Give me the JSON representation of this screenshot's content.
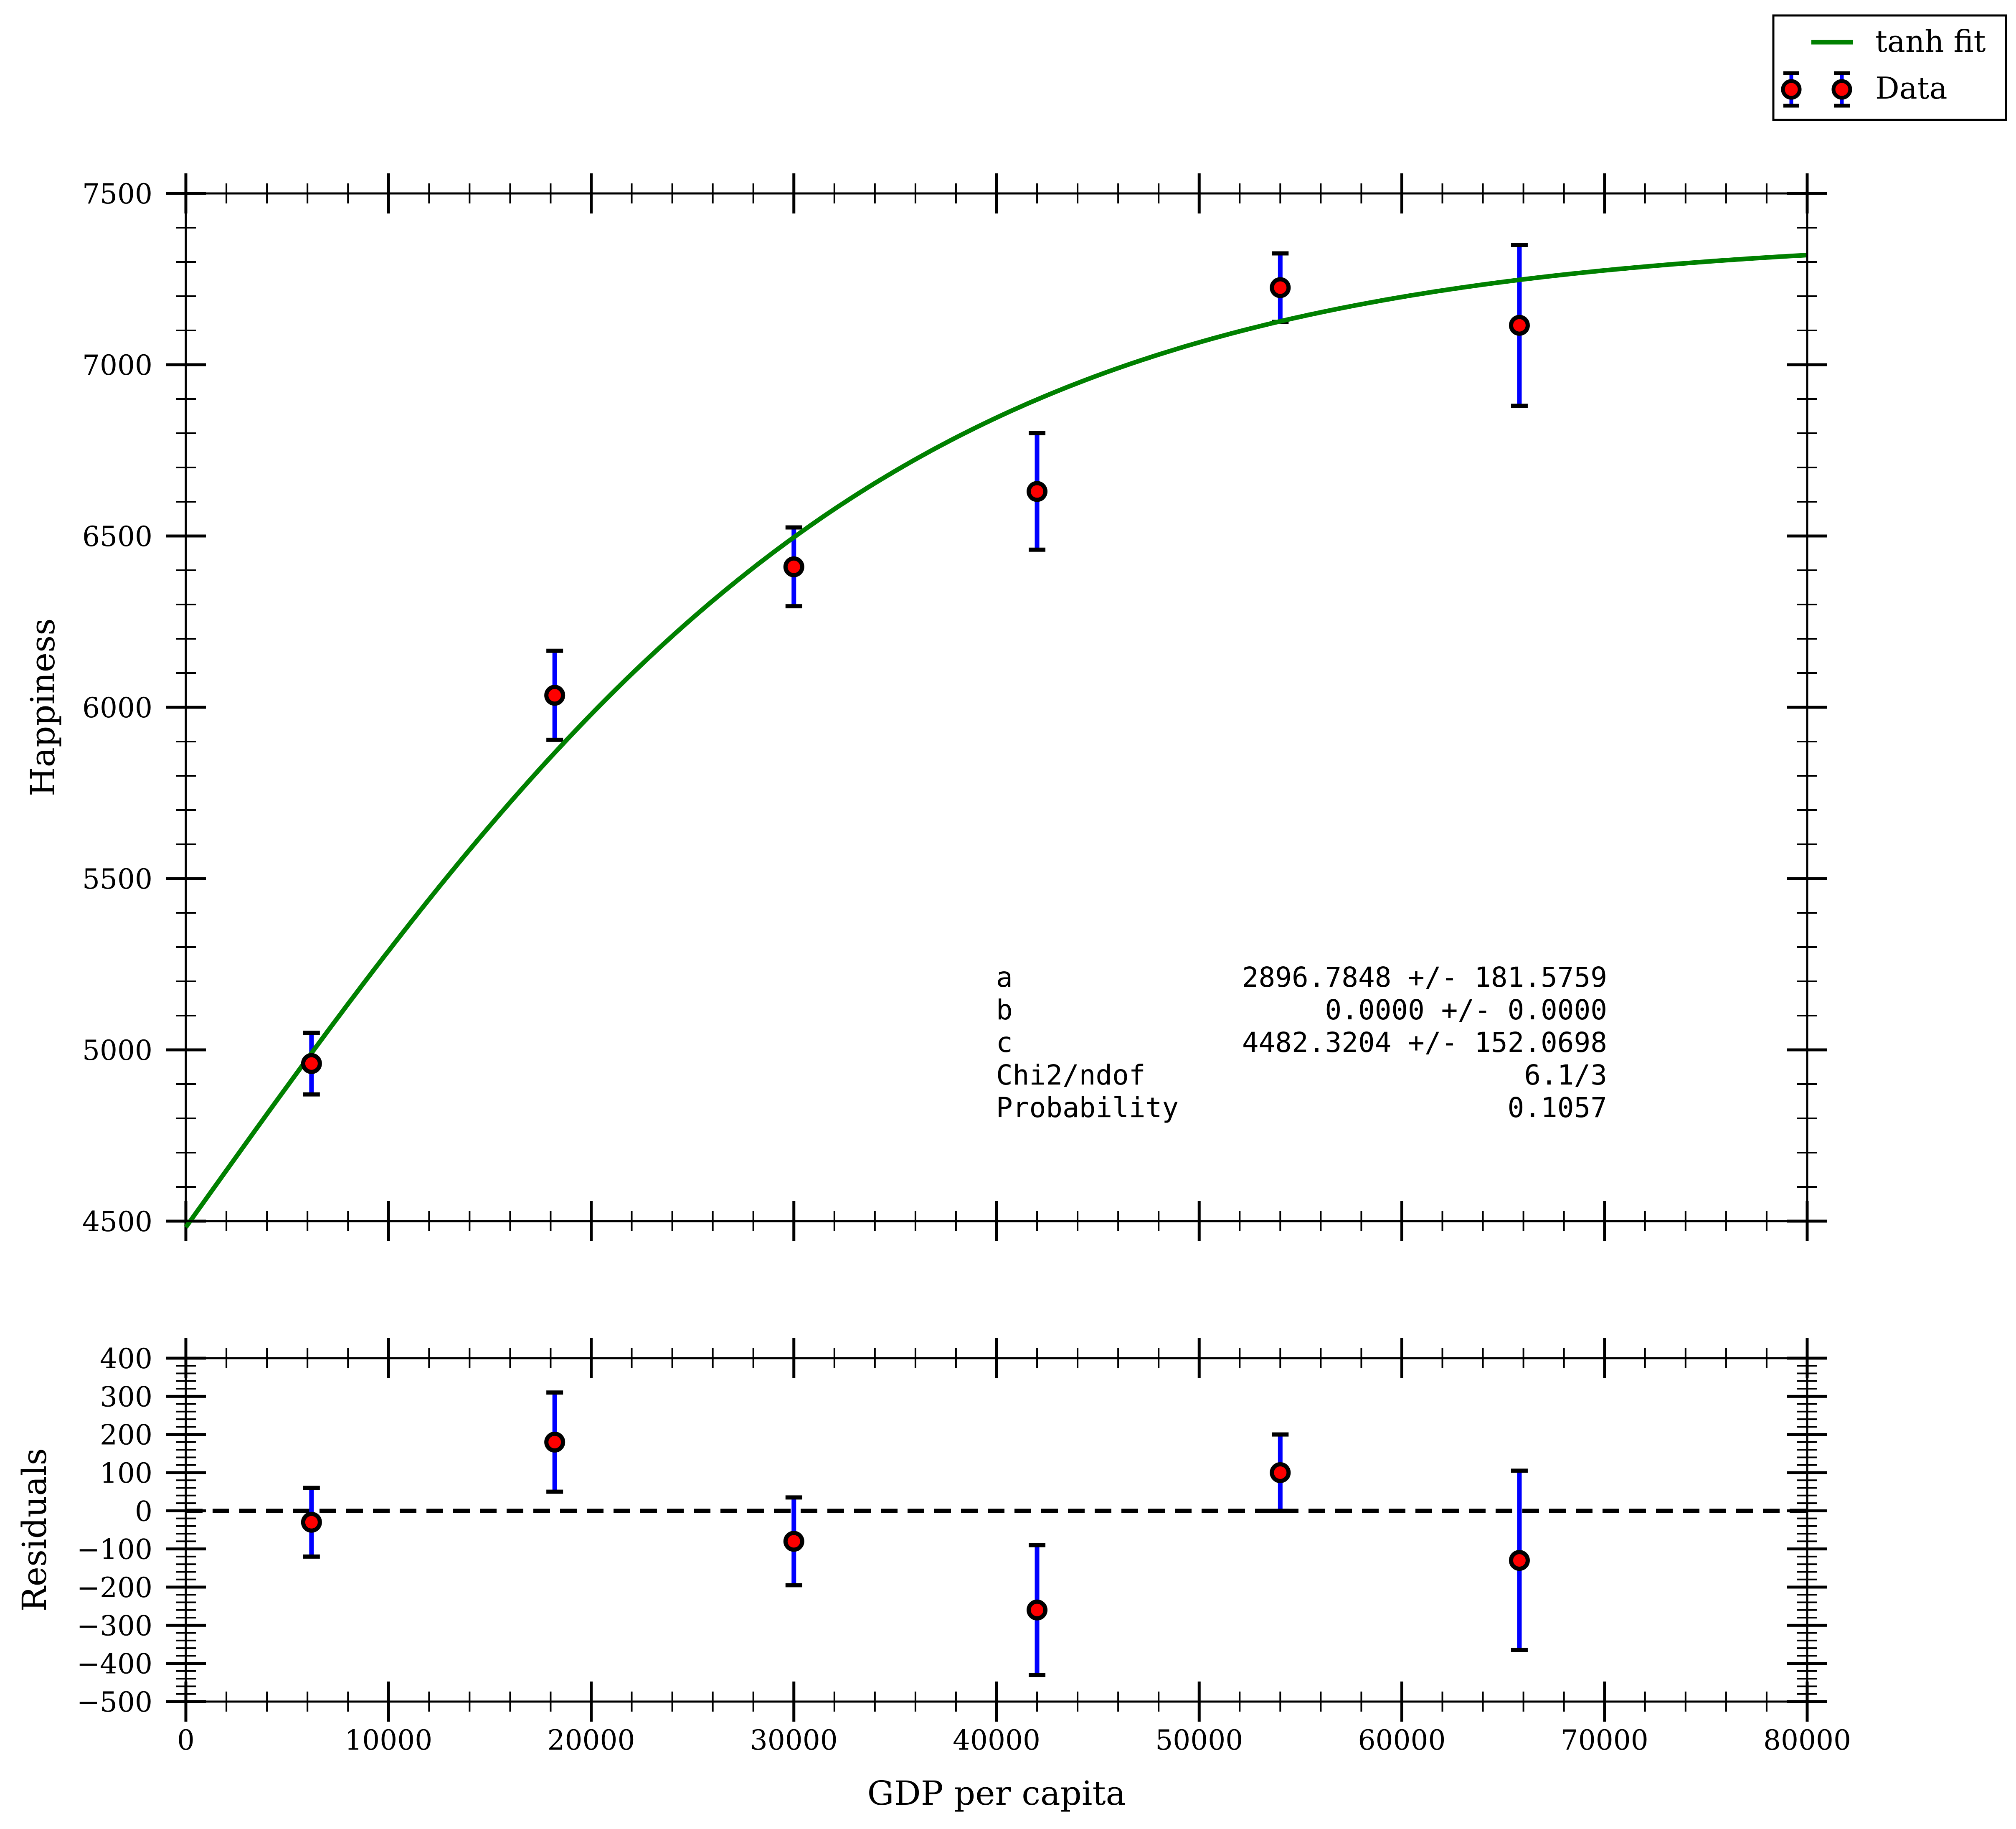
{
  "chart_data": [
    {
      "type": "scatter",
      "title": "",
      "xlabel": "",
      "ylabel": "Happiness",
      "xlim": [
        0,
        80000
      ],
      "ylim": [
        4500,
        7500
      ],
      "x_ticks": [
        "0",
        "10000",
        "20000",
        "30000",
        "40000",
        "50000",
        "60000",
        "70000",
        "80000"
      ],
      "y_ticks": [
        "4500",
        "5000",
        "5500",
        "6000",
        "6500",
        "7000",
        "7500"
      ],
      "grid": false,
      "legend": {
        "position": "top-right, outside plot",
        "entries": [
          {
            "label": "tanh fit",
            "color": "#008000",
            "marker": "line"
          },
          {
            "label": "Data",
            "color": "#ff0000",
            "marker": "errorbar"
          }
        ]
      },
      "series": [
        {
          "name": "tanh fit",
          "kind": "line",
          "color": "#008000",
          "model": "a*tanh(b*x)+c",
          "params": {
            "a": 2896.7848,
            "b": 2.86e-05,
            "c": 4482.3204
          }
        },
        {
          "name": "Data",
          "kind": "errorbar",
          "color": "#ff0000",
          "errorbar_color": "#0000ff",
          "x": [
            6200,
            18200,
            30000,
            42000,
            54000,
            65800
          ],
          "y": [
            4960,
            6035,
            6410,
            6630,
            7225,
            7115
          ],
          "yerr": [
            90,
            130,
            115,
            170,
            100,
            235
          ]
        }
      ],
      "annotations": [
        {
          "label": "a",
          "value": "2896.7848 +/- 181.5759"
        },
        {
          "label": "b",
          "value": "0.0000 +/- 0.0000"
        },
        {
          "label": "c",
          "value": "4482.3204 +/- 152.0698"
        },
        {
          "label": "Chi2/ndof",
          "value": "6.1/3"
        },
        {
          "label": "Probability",
          "value": "0.1057"
        }
      ]
    },
    {
      "type": "scatter",
      "title": "",
      "xlabel": "GDP per capita",
      "ylabel": "Residuals",
      "xlim": [
        0,
        80000
      ],
      "ylim": [
        -500,
        400
      ],
      "x_ticks": [
        "0",
        "10000",
        "20000",
        "30000",
        "40000",
        "50000",
        "60000",
        "70000",
        "80000"
      ],
      "y_ticks": [
        "−500",
        "−400",
        "−300",
        "−200",
        "−100",
        "0",
        "100",
        "200",
        "300",
        "400"
      ],
      "grid": false,
      "reference_line": {
        "y": 0,
        "style": "dashed",
        "color": "#000000"
      },
      "series": [
        {
          "name": "",
          "kind": "errorbar",
          "color": "#ff0000",
          "errorbar_color": "#0000ff",
          "x": [
            6200,
            18200,
            30000,
            42000,
            54000,
            65800
          ],
          "y": [
            -30,
            180,
            -80,
            -260,
            100,
            -130
          ],
          "yerr": [
            90,
            130,
            115,
            170,
            100,
            235
          ]
        }
      ]
    }
  ]
}
